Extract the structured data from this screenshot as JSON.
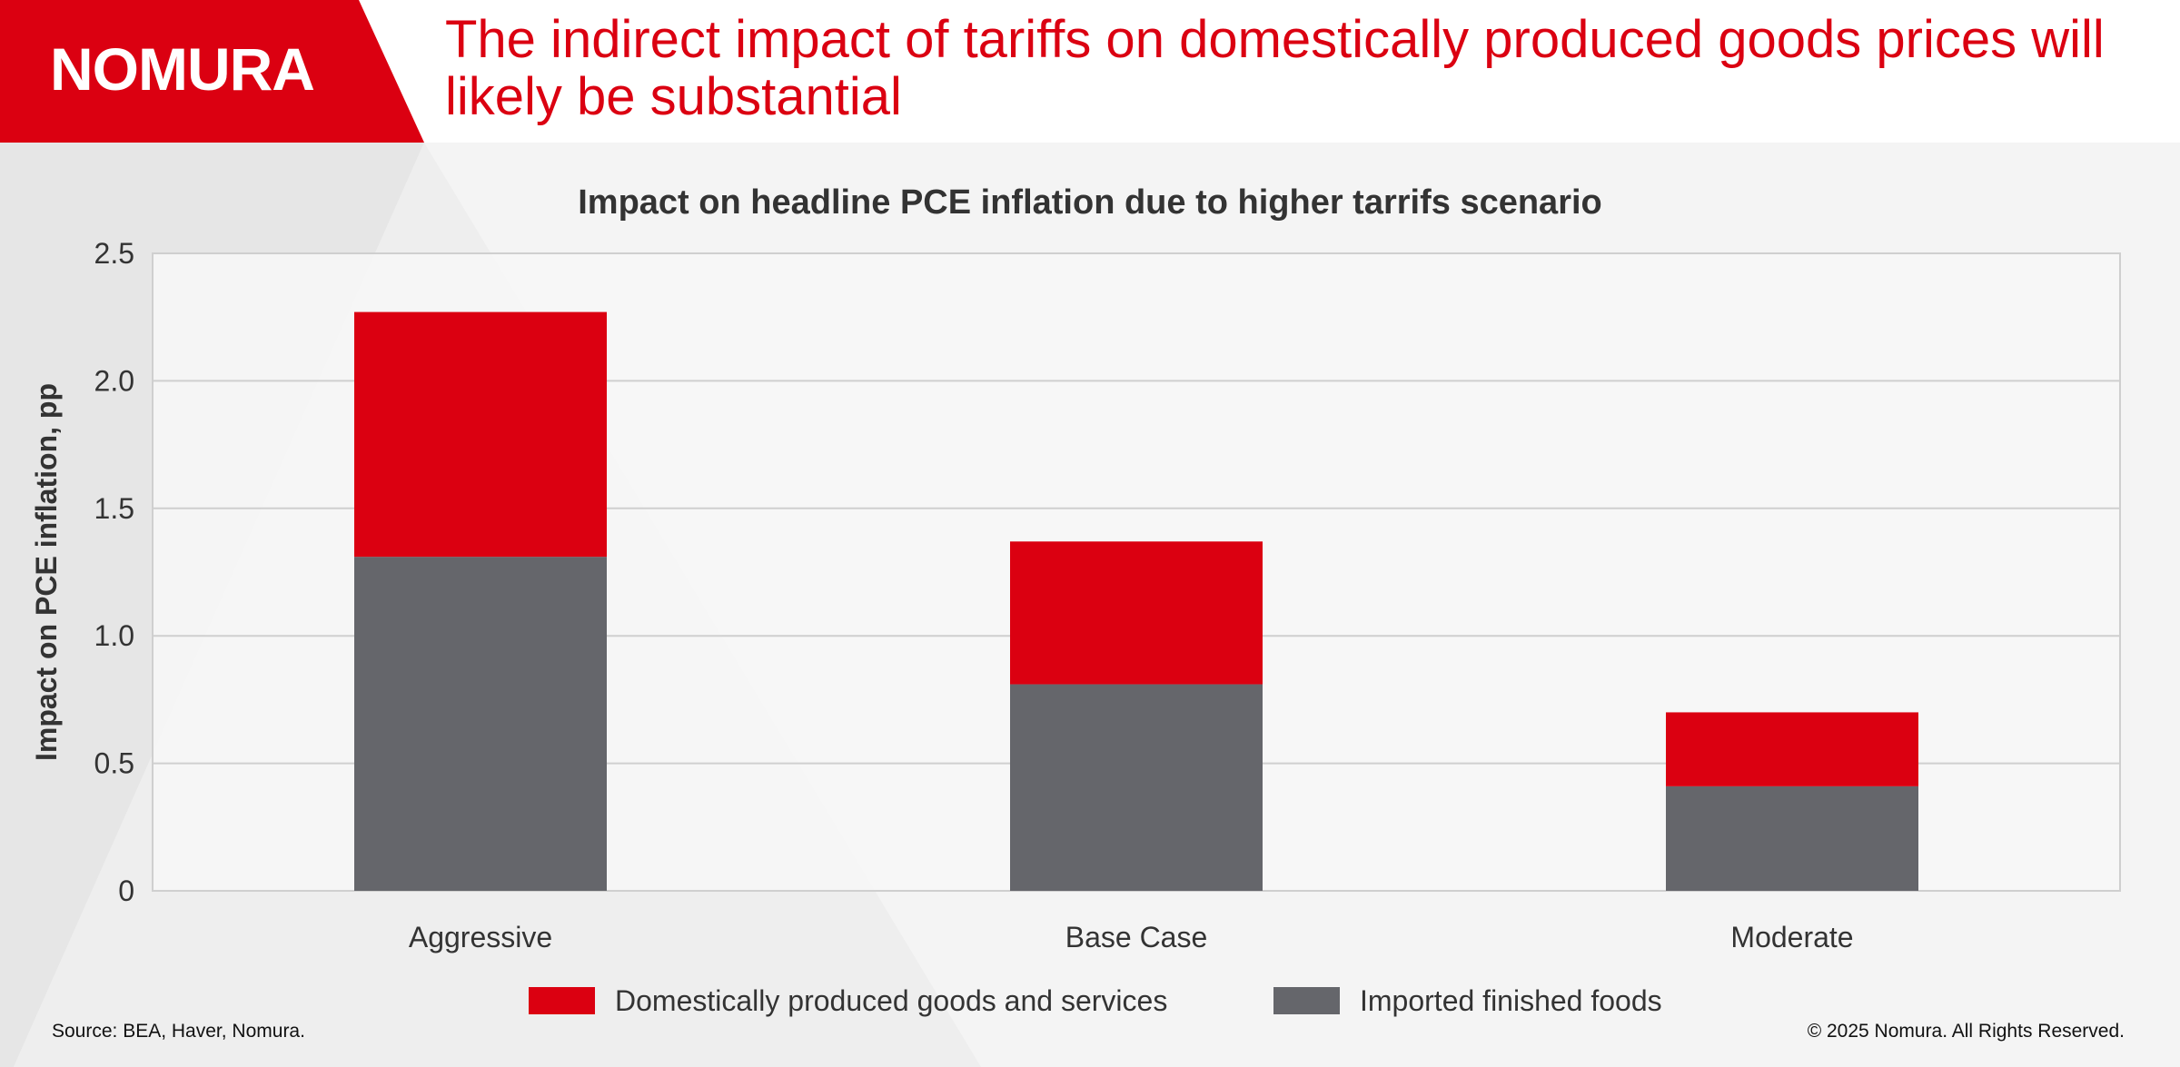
{
  "brand": {
    "logo_text": "NOMURA",
    "accent_color": "#db0011",
    "secondary_color": "#65666b"
  },
  "header": {
    "headline": "The indirect impact of tariffs on domestically produced goods prices will likely be substantial"
  },
  "footer": {
    "source": "Source: BEA, Haver, Nomura.",
    "copyright": "© 2025 Nomura. All Rights Reserved."
  },
  "chart_data": {
    "type": "bar",
    "stacked": true,
    "title": "Impact on headline PCE inflation due to higher tarrifs scenario",
    "xlabel": "",
    "ylabel": "Impact on PCE inflation, pp",
    "categories": [
      "Aggressive",
      "Base Case",
      "Moderate"
    ],
    "series": [
      {
        "name": "Imported finished foods",
        "color": "#65666b",
        "values": [
          1.31,
          0.81,
          0.41
        ]
      },
      {
        "name": "Domestically produced goods and services",
        "color": "#db0011",
        "values": [
          0.96,
          0.56,
          0.29
        ]
      }
    ],
    "totals": [
      2.27,
      1.37,
      0.7
    ],
    "ylim": [
      0,
      2.5
    ],
    "yticks": [
      0,
      0.5,
      1.0,
      1.5,
      2.0,
      2.5
    ],
    "ytick_labels": [
      "0",
      "0.5",
      "1.0",
      "1.5",
      "2.0",
      "2.5"
    ],
    "grid": true,
    "legend": {
      "placement": "bottom",
      "entries": [
        {
          "label": "Domestically produced goods and services",
          "color": "#db0011"
        },
        {
          "label": "Imported finished foods",
          "color": "#65666b"
        }
      ]
    }
  }
}
